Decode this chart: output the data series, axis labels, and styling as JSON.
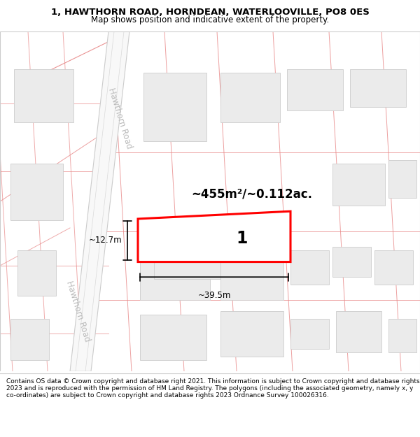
{
  "title": "1, HAWTHORN ROAD, HORNDEAN, WATERLOOVILLE, PO8 0ES",
  "subtitle": "Map shows position and indicative extent of the property.",
  "footer": "Contains OS data © Crown copyright and database right 2021. This information is subject to Crown copyright and database rights 2023 and is reproduced with the permission of HM Land Registry. The polygons (including the associated geometry, namely x, y co-ordinates) are subject to Crown copyright and database rights 2023 Ordnance Survey 100026316.",
  "map_bg": "#ffffff",
  "title_bg": "#ffffff",
  "footer_bg": "#ffffff",
  "road_line_color": "#e88888",
  "road_fill": "#ffffff",
  "road_border": "#cccccc",
  "building_fill": "#ebebeb",
  "building_edge": "#cccccc",
  "highlight_color": "#ff0000",
  "highlight_fill": "#ffffff",
  "text_color": "#000000",
  "road_label_color": "#bbbbbb",
  "area_text": "~455m²/~0.112ac.",
  "width_text": "~39.5m",
  "height_text": "~12.7m",
  "plot_number": "1",
  "road_label": "Hawthorn Road",
  "road_label2": "Hawthorn Road",
  "title_fontsize": 9.5,
  "subtitle_fontsize": 8.5,
  "footer_fontsize": 6.5
}
